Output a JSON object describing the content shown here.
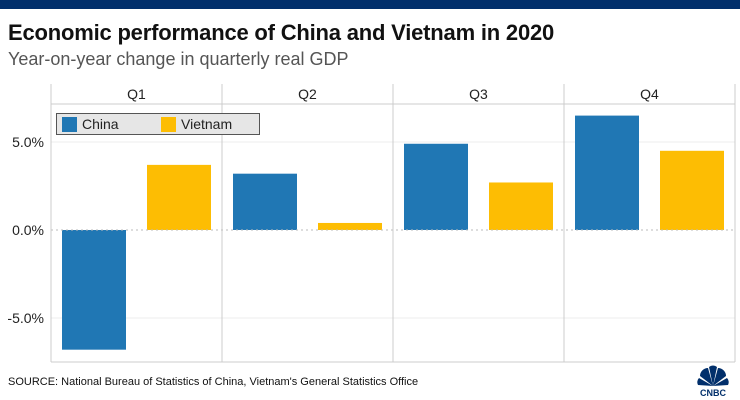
{
  "header": {
    "title": "Economic performance of China and Vietnam in 2020",
    "subtitle": "Year-on-year change in quarterly real GDP"
  },
  "footer": {
    "source": "SOURCE: National Bureau of Statistics of China, Vietnam's General Statistics Office",
    "logo_text": "CNBC"
  },
  "colors": {
    "topbar": "#012f6b",
    "china": "#2077b4",
    "vietnam": "#fdbd03"
  },
  "chart_data": {
    "type": "bar",
    "title": "Economic performance of China and Vietnam in 2020",
    "subtitle": "Year-on-year change in quarterly real GDP",
    "categories": [
      "Q1",
      "Q2",
      "Q3",
      "Q4"
    ],
    "series": [
      {
        "name": "China",
        "color": "#2077b4",
        "values": [
          -6.8,
          3.2,
          4.9,
          6.5
        ]
      },
      {
        "name": "Vietnam",
        "color": "#fdbd03",
        "values": [
          3.7,
          0.4,
          2.7,
          4.5
        ]
      }
    ],
    "ylim": [
      -7.5,
      8.0
    ],
    "yticks": [
      5.0,
      0.0,
      -5.0
    ],
    "ytick_labels": [
      "5.0%",
      "0.0%",
      "-5.0%"
    ],
    "xlabel": "",
    "ylabel": "",
    "grid": true,
    "legend": {
      "placement": "top-left",
      "entries": [
        "China",
        "Vietnam"
      ]
    }
  }
}
